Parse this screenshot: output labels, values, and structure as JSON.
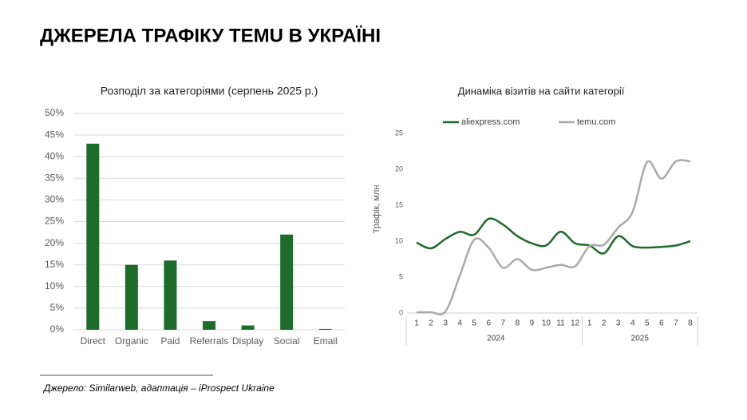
{
  "title": "ДЖЕРЕЛА ТРАФІКУ TEMU В УКРАЇНІ",
  "source": "Джерело: Similarweb, адаптація –  iProspect Ukraine",
  "chart_data": [
    {
      "type": "bar",
      "title": "Розподіл за категоріями (серпень 2025 р.)",
      "categories": [
        "Direct",
        "Organic",
        "Paid",
        "Referrals",
        "Display",
        "Social",
        "Email"
      ],
      "values": [
        43,
        15,
        16,
        2,
        1,
        22,
        0.2
      ],
      "color": "#1e6b2a",
      "ylim": [
        0,
        50
      ],
      "yticks": [
        {
          "value": 0,
          "label": "0%"
        },
        {
          "value": 5,
          "label": "5%"
        },
        {
          "value": 10,
          "label": "10%"
        },
        {
          "value": 15,
          "label": "15%"
        },
        {
          "value": 20,
          "label": "20%"
        },
        {
          "value": 25,
          "label": "25%"
        },
        {
          "value": 30,
          "label": "30%"
        },
        {
          "value": 35,
          "label": "35%"
        },
        {
          "value": 40,
          "label": "40%"
        },
        {
          "value": 45,
          "label": "45%"
        },
        {
          "value": 50,
          "label": "50%"
        }
      ],
      "grid": true
    },
    {
      "type": "line",
      "title": "Динаміка візитів на сайти категорії",
      "ylabel": "Трафік, млн",
      "category_groups": [
        {
          "label": "2024",
          "categories": [
            "1",
            "2",
            "3",
            "4",
            "5",
            "6",
            "7",
            "8",
            "9",
            "10",
            "11",
            "12"
          ]
        },
        {
          "label": "2025",
          "categories": [
            "1",
            "2",
            "3",
            "4",
            "5",
            "6",
            "7",
            "8"
          ]
        }
      ],
      "series": [
        {
          "name": "aliexpress.com",
          "color": "#1e6b2a",
          "values": [
            9.8,
            9.0,
            10.3,
            11.3,
            10.9,
            13.1,
            12.3,
            10.7,
            9.7,
            9.4,
            11.3,
            9.7,
            9.4,
            8.3,
            10.7,
            9.3,
            9.1,
            9.2,
            9.4,
            10.0
          ]
        },
        {
          "name": "temu.com",
          "color": "#a8aaa8",
          "values": [
            0.1,
            0.1,
            0.2,
            5.2,
            10.2,
            9.1,
            6.3,
            7.5,
            6.0,
            6.3,
            6.7,
            6.5,
            9.3,
            9.5,
            11.9,
            14.1,
            21.0,
            18.7,
            21.1,
            21.1
          ]
        }
      ],
      "ylim": [
        0,
        25
      ],
      "yticks": [
        0,
        5,
        10,
        15,
        20,
        25
      ],
      "grid": false
    }
  ]
}
